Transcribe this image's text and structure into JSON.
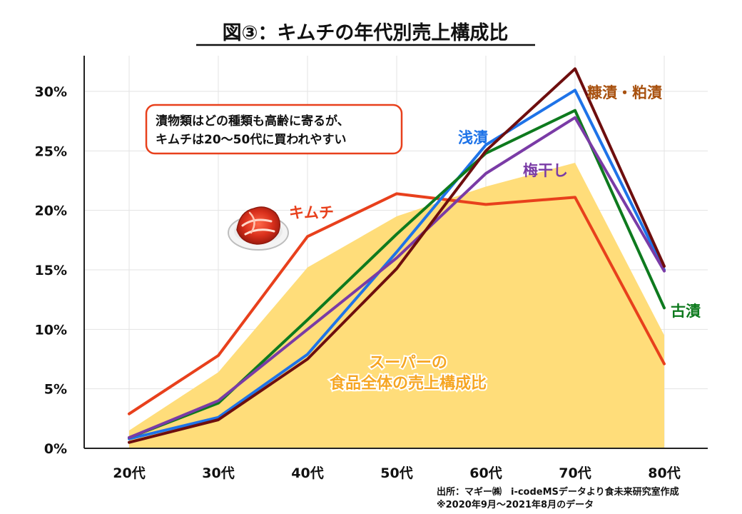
{
  "chart_data": {
    "type": "line",
    "title": "図③：キムチの年代別売上構成比",
    "categories": [
      "20代",
      "30代",
      "40代",
      "50代",
      "60代",
      "70代",
      "80代"
    ],
    "y_ticks": [
      "0%",
      "5%",
      "10%",
      "15%",
      "20%",
      "25%",
      "30%"
    ],
    "ylim": [
      0,
      33
    ],
    "grid": true,
    "area": {
      "name": "スーパーの食品全体の売上構成比",
      "label_lines": [
        "スーパーの",
        "食品全体の売上構成比"
      ],
      "values": [
        1.5,
        6.4,
        15.2,
        19.5,
        22.0,
        24.0,
        9.5
      ],
      "color": "#FFDD7A",
      "label_color": "#F6A623"
    },
    "series": [
      {
        "name": "キムチ",
        "values": [
          2.9,
          7.8,
          17.8,
          21.4,
          20.5,
          21.1,
          7.1
        ],
        "color": "#E8401C",
        "label_color": "#E8401C"
      },
      {
        "name": "浅漬",
        "values": [
          0.8,
          2.6,
          7.9,
          16.5,
          25.5,
          30.1,
          15.0
        ],
        "color": "#1E73E8",
        "label_color": "#1E73E8"
      },
      {
        "name": "古漬",
        "values": [
          0.9,
          3.8,
          10.8,
          18.0,
          24.8,
          28.4,
          11.8
        ],
        "color": "#0E7A1E",
        "label_color": "#0E7A1E"
      },
      {
        "name": "梅干し",
        "values": [
          0.9,
          4.0,
          10.0,
          16.0,
          23.1,
          27.8,
          14.9
        ],
        "color": "#7A3BA6",
        "label_color": "#7A3BA6"
      },
      {
        "name": "糠漬・粕漬",
        "values": [
          0.5,
          2.4,
          7.5,
          15.1,
          25.0,
          31.9,
          15.3
        ],
        "color": "#6E0E0E",
        "label_color": "#A8510F"
      }
    ],
    "annotation": {
      "lines": [
        "漬物類はどの種類も高齢に寄るが、",
        "キムチは20～50代に買われやすい"
      ],
      "border_color": "#E8401C"
    },
    "source": {
      "lines": [
        "出所：マギー㈱　i-codeMSデータより食未来研究室作成",
        "※2020年9月～2021年8月のデータ"
      ]
    }
  }
}
